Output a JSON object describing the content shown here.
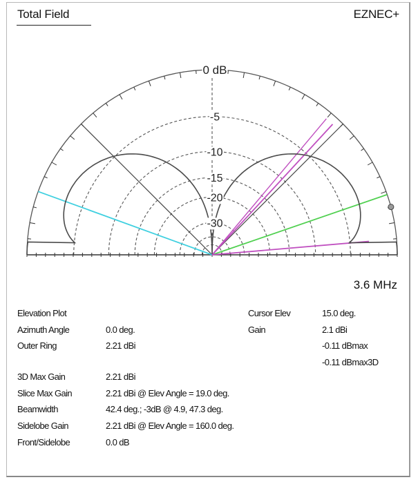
{
  "header": {
    "title": "Total Field",
    "brand": "EZNEC+"
  },
  "frequency": "3.6 MHz",
  "chart_data": {
    "type": "polar-elevation",
    "scale_unit": "dB",
    "ring_labels": [
      "0 dB",
      "-5",
      "-10",
      "-15",
      "-20",
      "-30"
    ],
    "ring_values_db": [
      0,
      -5,
      -10,
      -15,
      -20,
      -30
    ],
    "pattern": {
      "name": "Total Field",
      "shape": "figure-eight (horizontal dipole), null at zenith",
      "max_gain_dbi": 2.21,
      "max_elev_deg": 19.0,
      "sidelobe_elev_deg": 160.0
    },
    "markers": {
      "cursor_elev_deg": 15.0,
      "beamwidth_lines_deg": [
        4.9,
        47.3
      ],
      "max_gain_line_deg": 19.0,
      "sidelobe_line_deg": 160.0
    },
    "colors": {
      "pattern": "#4a4a4a",
      "rings": "#555555",
      "cursor": "#c050c0",
      "max_gain": "#50d050",
      "sidelobe": "#40d0e0",
      "beamwidth": "#c050c0"
    }
  },
  "info": {
    "left": [
      {
        "label": "Elevation Plot",
        "value": ""
      },
      {
        "label": "Azimuth Angle",
        "value": "0.0 deg."
      },
      {
        "label": "Outer Ring",
        "value": "2.21 dBi"
      },
      {
        "label": "",
        "value": ""
      },
      {
        "label": "3D Max Gain",
        "value": "2.21 dBi"
      },
      {
        "label": "Slice Max Gain",
        "value": "2.21 dBi @ Elev Angle = 19.0 deg."
      },
      {
        "label": "Beamwidth",
        "value": "42.4 deg.; -3dB @ 4.9, 47.3 deg."
      },
      {
        "label": "Sidelobe Gain",
        "value": "2.21 dBi @ Elev Angle = 160.0 deg."
      },
      {
        "label": "Front/Sidelobe",
        "value": "0.0 dB"
      }
    ],
    "right": [
      {
        "label": "Cursor Elev",
        "value": "15.0 deg."
      },
      {
        "label": "Gain",
        "value": "2.1 dBi"
      },
      {
        "label": "",
        "value": "-0.11 dBmax"
      },
      {
        "label": "",
        "value": "-0.11 dBmax3D"
      }
    ]
  }
}
